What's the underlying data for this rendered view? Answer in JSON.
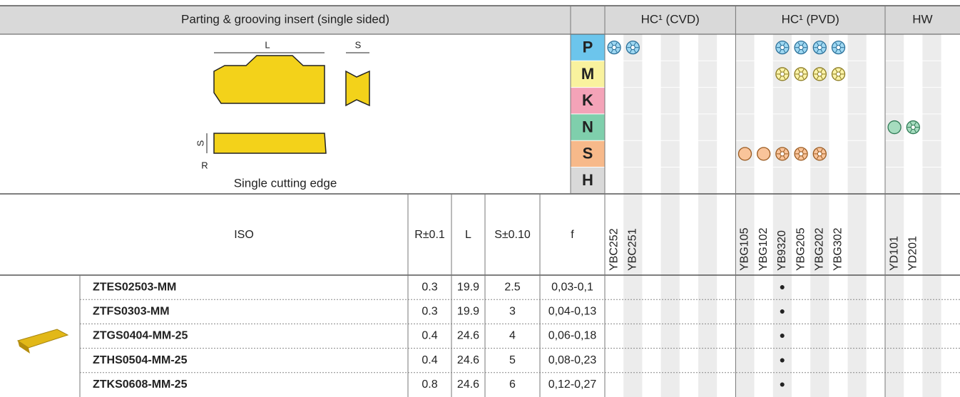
{
  "header": {
    "title": "Parting & grooving insert (single sided)",
    "groups": [
      "HC¹ (CVD)",
      "HC¹ (PVD)",
      "HW"
    ]
  },
  "materials": [
    "P",
    "M",
    "K",
    "N",
    "S",
    "H"
  ],
  "diagram": {
    "dimension_labels": [
      "L",
      "S",
      "S",
      "R"
    ],
    "caption": "Single cutting edge"
  },
  "columns": [
    "ISO",
    "R±0.1",
    "L",
    "S±0.10",
    "f"
  ],
  "grades": {
    "cvd": [
      "YBC252",
      "YBC251"
    ],
    "pvd": [
      "YBG105",
      "YBG102",
      "YB9320",
      "YBG205",
      "YBG202",
      "YBG302"
    ],
    "hw": [
      "YD101",
      "YD201"
    ]
  },
  "rows": [
    [
      "ZTES02503-MM",
      "0.3",
      "19.9",
      "2.5",
      "0,03-0,1",
      "●"
    ],
    [
      "ZTFS0303-MM",
      "0.3",
      "19.9",
      "3",
      "0,04-0,13",
      "●"
    ],
    [
      "ZTGS0404-MM-25",
      "0.4",
      "24.6",
      "4",
      "0,06-0,18",
      "●"
    ],
    [
      "ZTHS0504-MM-25",
      "0.4",
      "24.6",
      "5",
      "0,08-0,23",
      "●"
    ],
    [
      "ZTKS0608-MM-25",
      "0.8",
      "24.6",
      "6",
      "0,12-0,27",
      "●"
    ]
  ]
}
